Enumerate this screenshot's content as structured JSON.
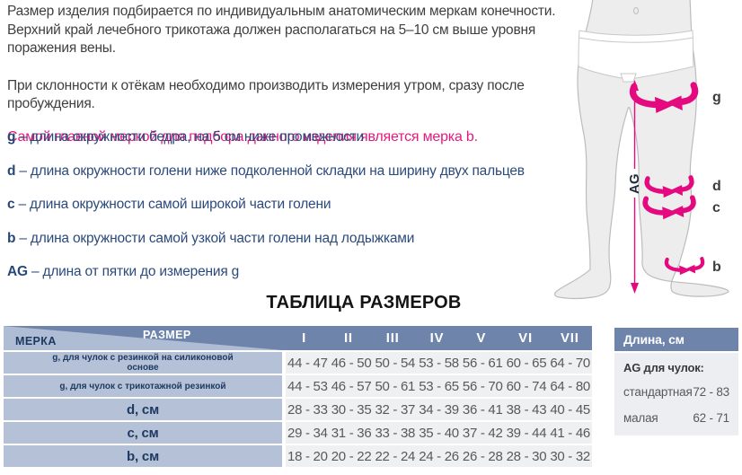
{
  "intro": {
    "p1": "Размер изделия подбирается по индивидуальным анатомическим меркам конечности. Верхний край лечебного трикотажа должен располагаться на 5–10 см выше уровня поражения вены.",
    "p2": "При склонности к отёкам необходимо производить измерения утром, сразу после пробуждения.",
    "highlight": "Самой главной меркой для подбора данного изделия является мерка b."
  },
  "measurements": [
    {
      "key": "g",
      "text": "– длина окружности бедра, на 5 см ниже промежности"
    },
    {
      "key": "d",
      "text": "– длина окружности голени ниже подколенной складки на ширину двух пальцев"
    },
    {
      "key": "c",
      "text": "– длина окружности самой широкой части голени"
    },
    {
      "key": "b",
      "text": "– длина окружности самой узкой части голени над лодыжками"
    },
    {
      "key": "AG",
      "text": "– длина от пятки до измерения g"
    }
  ],
  "figure": {
    "label_g": "g",
    "label_d": "d",
    "label_c": "c",
    "label_b": "b",
    "label_ag": "AG",
    "accent_color": "#e5097f"
  },
  "size_table": {
    "title": "ТАБЛИЦА РАЗМЕРОВ",
    "corner": {
      "top": "РАЗМЕР",
      "bottom": "МЕРКА"
    },
    "columns": [
      "I",
      "II",
      "III",
      "IV",
      "V",
      "VI",
      "VII"
    ],
    "rows": [
      {
        "label": "g, для чулок с резинкой на силиконовой основе",
        "values": [
          "44 - 47",
          "46 - 50",
          "50 - 54",
          "53 - 58",
          "56 - 61",
          "60 - 65",
          "64 - 70"
        ]
      },
      {
        "label": "g, для чулок с трикотажной резинкой",
        "values": [
          "44 - 53",
          "46 - 57",
          "50 - 61",
          "53 - 65",
          "56 - 70",
          "60 - 74",
          "64 - 80"
        ]
      },
      {
        "label": "d, см",
        "values": [
          "28 - 33",
          "30 - 35",
          "32 - 37",
          "34 - 39",
          "36 - 41",
          "38 - 43",
          "40 - 45"
        ]
      },
      {
        "label": "c, см",
        "values": [
          "29 - 34",
          "31 - 36",
          "33 - 38",
          "35 - 40",
          "37 - 42",
          "39 - 44",
          "41 - 46"
        ]
      },
      {
        "label": "b, см",
        "values": [
          "18 - 20",
          "20 - 22",
          "22 - 24",
          "24 - 26",
          "26 - 28",
          "28 - 30",
          "30 - 32"
        ]
      }
    ]
  },
  "length_panel": {
    "header": "Длина, см",
    "subheader": "AG для чулок:",
    "rows": [
      {
        "label": "стандартная",
        "value": "72 - 83"
      },
      {
        "label": "малая",
        "value": "62 - 71"
      }
    ]
  },
  "colors": {
    "accent_magenta": "#e5097f",
    "table_header_blue": "#6e84ab",
    "label_cell_blue": "#b5c1d6",
    "navy_text": "#2b4a7c"
  }
}
